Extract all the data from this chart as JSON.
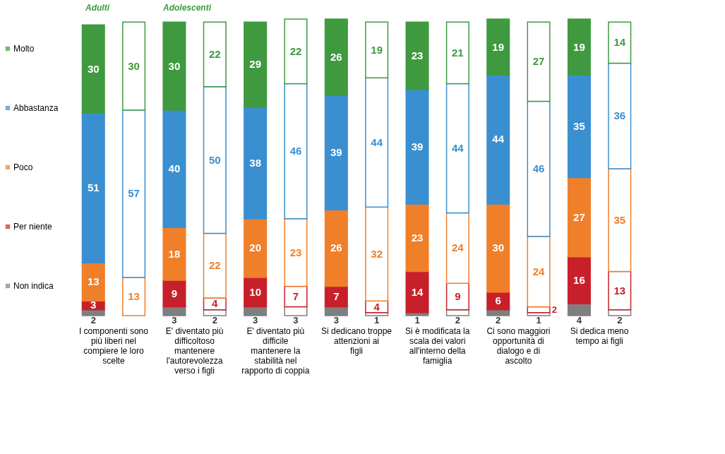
{
  "chart_data": {
    "type": "bar",
    "stacked": true,
    "data_labels": true,
    "legend": "left",
    "tick_labels": "x",
    "categories": [
      "I componenti sono più liberi nel compiere le loro scelte",
      null,
      "E' diventato più difficoltoso mantenere l'autorevolezza verso i figli",
      null,
      "E' diventato più difficile mantenere la stabilità nel rapporto di coppia",
      null,
      "Si dedicano troppe attenzioni ai figli",
      null,
      "Si è modificata la scala dei valori all'interno della famiglia",
      null,
      "Ci sono maggiori opportunità di dialogo e di ascolto",
      null,
      "Si dedica meno tempo ai figli",
      null
    ],
    "annotations": [
      "Adulti",
      "Adolescenti"
    ],
    "series": [
      {
        "name": "Non indica",
        "color": "#7f7f7f",
        "values": [
          2,
          null,
          3,
          2,
          3,
          3,
          3,
          1,
          1,
          2,
          2,
          1,
          4,
          2
        ]
      },
      {
        "name": "Per niente",
        "color": "#c8202a",
        "values": [
          3,
          null,
          9,
          4,
          10,
          7,
          7,
          4,
          14,
          9,
          6,
          2,
          16,
          13
        ]
      },
      {
        "name": "Poco",
        "color": "#f07f2a",
        "values": [
          13,
          13,
          18,
          22,
          20,
          23,
          26,
          32,
          23,
          24,
          30,
          24,
          27,
          35
        ]
      },
      {
        "name": "Abbastanza",
        "color": "#3a8fd0",
        "values": [
          51,
          57,
          40,
          50,
          38,
          46,
          39,
          44,
          39,
          44,
          44,
          46,
          35,
          36
        ]
      },
      {
        "name": "Molto",
        "color": "#3f9a3f",
        "values": [
          30,
          30,
          30,
          22,
          29,
          22,
          26,
          19,
          23,
          21,
          19,
          27,
          19,
          14
        ]
      }
    ]
  }
}
